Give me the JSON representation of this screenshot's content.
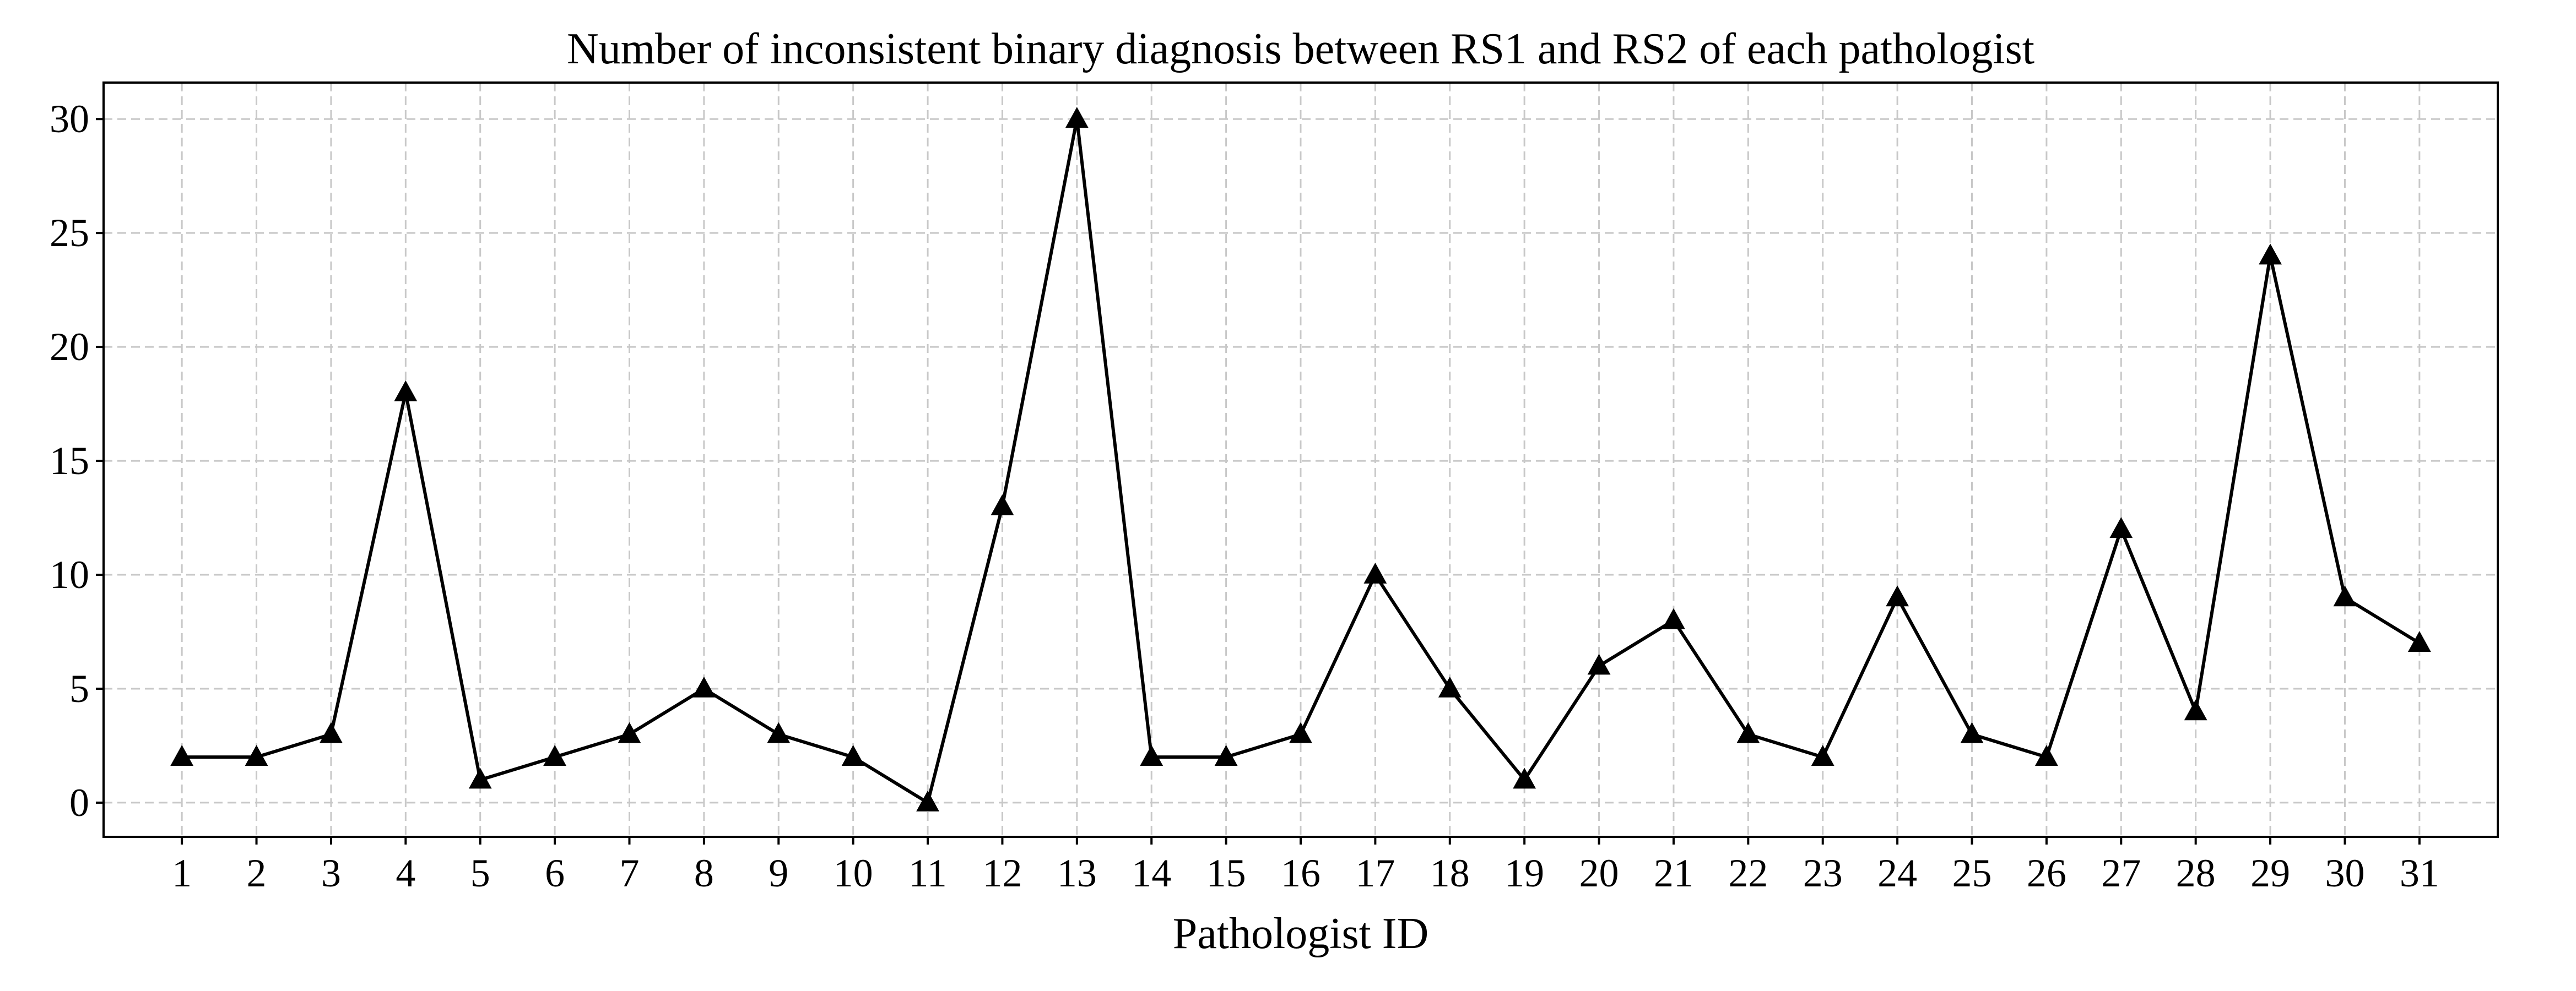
{
  "chart_data": {
    "type": "line",
    "title": "Number of inconsistent binary diagnosis between RS1 and RS2 of each pathologist",
    "xlabel": "Pathologist ID",
    "ylabel": "",
    "x": [
      1,
      2,
      3,
      4,
      5,
      6,
      7,
      8,
      9,
      10,
      11,
      12,
      13,
      14,
      15,
      16,
      17,
      18,
      19,
      20,
      21,
      22,
      23,
      24,
      25,
      26,
      27,
      28,
      29,
      30,
      31
    ],
    "x_tick_labels": [
      "1",
      "2",
      "3",
      "4",
      "5",
      "6",
      "7",
      "8",
      "9",
      "10",
      "11",
      "12",
      "13",
      "14",
      "15",
      "16",
      "17",
      "18",
      "19",
      "20",
      "21",
      "22",
      "23",
      "24",
      "25",
      "26",
      "27",
      "28",
      "29",
      "30",
      "31"
    ],
    "series": [
      {
        "values": [
          2,
          2,
          3,
          18,
          1,
          2,
          3,
          5,
          3,
          2,
          0,
          13,
          30,
          2,
          2,
          3,
          10,
          5,
          1,
          6,
          8,
          3,
          2,
          9,
          3,
          2,
          12,
          4,
          24,
          9,
          7
        ],
        "color": "#000000",
        "marker": "triangle"
      }
    ],
    "y_ticks": [
      0,
      5,
      10,
      15,
      20,
      25,
      30
    ],
    "y_tick_labels": [
      "0",
      "5",
      "10",
      "15",
      "20",
      "25",
      "30"
    ],
    "xlim": [
      -0.05,
      32.05
    ],
    "ylim": [
      -1.5,
      31.6
    ],
    "grid": true,
    "legend": "none"
  }
}
